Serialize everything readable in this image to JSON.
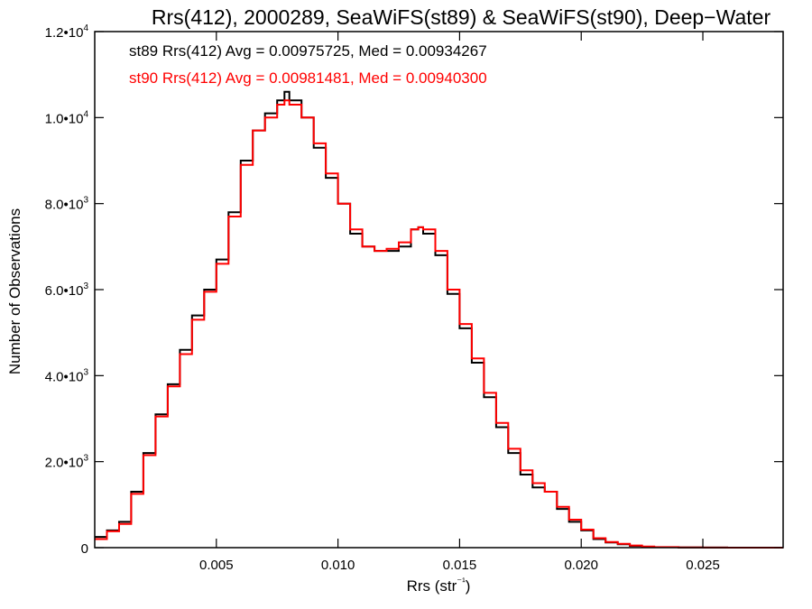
{
  "chart_data": {
    "type": "line",
    "title": "Rrs(412), 2000289, SeaWiFS(st89) & SeaWiFS(st90), Deep−Water",
    "xlabel": "Rrs (str⁻¹)",
    "ylabel": "Number of Observations",
    "xlim": [
      0.0,
      0.0283
    ],
    "ylim": [
      0,
      12000
    ],
    "grid": false,
    "xticks": [
      {
        "value": 0.005,
        "label": "0.005"
      },
      {
        "value": 0.01,
        "label": "0.010"
      },
      {
        "value": 0.015,
        "label": "0.015"
      },
      {
        "value": 0.02,
        "label": "0.020"
      },
      {
        "value": 0.025,
        "label": "0.025"
      }
    ],
    "yticks": [
      {
        "value": 0,
        "mantissa": "0",
        "exp": ""
      },
      {
        "value": 2000,
        "mantissa": "2.0•10",
        "exp": "3"
      },
      {
        "value": 4000,
        "mantissa": "4.0•10",
        "exp": "3"
      },
      {
        "value": 6000,
        "mantissa": "6.0•10",
        "exp": "3"
      },
      {
        "value": 8000,
        "mantissa": "8.0•10",
        "exp": "3"
      },
      {
        "value": 10000,
        "mantissa": "1.0•10",
        "exp": "4"
      },
      {
        "value": 12000,
        "mantissa": "1.2•10",
        "exp": "4"
      }
    ],
    "annotations": [
      {
        "text": "st89 Rrs(412) Avg = 0.00975725, Med = 0.00934267",
        "color": "#000000"
      },
      {
        "text": "st90 Rrs(412) Avg = 0.00981481, Med = 0.00940300",
        "color": "#ff0000"
      }
    ],
    "x": [
      0.0,
      0.0005,
      0.001,
      0.0015,
      0.002,
      0.0025,
      0.003,
      0.0035,
      0.004,
      0.0045,
      0.005,
      0.0055,
      0.006,
      0.0065,
      0.007,
      0.0075,
      0.0078,
      0.008,
      0.0085,
      0.009,
      0.0095,
      0.01,
      0.0105,
      0.011,
      0.0115,
      0.012,
      0.0125,
      0.013,
      0.0133,
      0.0135,
      0.014,
      0.0145,
      0.015,
      0.0155,
      0.016,
      0.0165,
      0.017,
      0.0175,
      0.018,
      0.0185,
      0.019,
      0.0195,
      0.02,
      0.0205,
      0.021,
      0.0215,
      0.022,
      0.0225,
      0.023,
      0.024,
      0.025,
      0.026,
      0.027,
      0.0283
    ],
    "series": [
      {
        "name": "st89",
        "color": "#000000",
        "values": [
          250,
          400,
          600,
          1300,
          2200,
          3100,
          3800,
          4600,
          5400,
          6000,
          6700,
          7800,
          9000,
          9700,
          10100,
          10400,
          10600,
          10400,
          10000,
          9300,
          8600,
          8000,
          7300,
          7000,
          6900,
          6900,
          7000,
          7400,
          7450,
          7300,
          6800,
          5900,
          5100,
          4300,
          3500,
          2800,
          2200,
          1700,
          1400,
          1300,
          900,
          600,
          400,
          200,
          120,
          80,
          40,
          20,
          10,
          5,
          2,
          0,
          0,
          0
        ]
      },
      {
        "name": "st90",
        "color": "#ff0000",
        "values": [
          200,
          380,
          550,
          1250,
          2150,
          3050,
          3750,
          4500,
          5300,
          5950,
          6600,
          7700,
          8900,
          9700,
          10000,
          10300,
          10400,
          10300,
          10000,
          9400,
          8700,
          8000,
          7400,
          7000,
          6900,
          6950,
          7100,
          7400,
          7450,
          7400,
          6900,
          6000,
          5200,
          4400,
          3600,
          2900,
          2300,
          1800,
          1500,
          1300,
          950,
          650,
          420,
          220,
          130,
          90,
          50,
          25,
          12,
          6,
          3,
          1,
          0,
          0
        ]
      }
    ]
  }
}
